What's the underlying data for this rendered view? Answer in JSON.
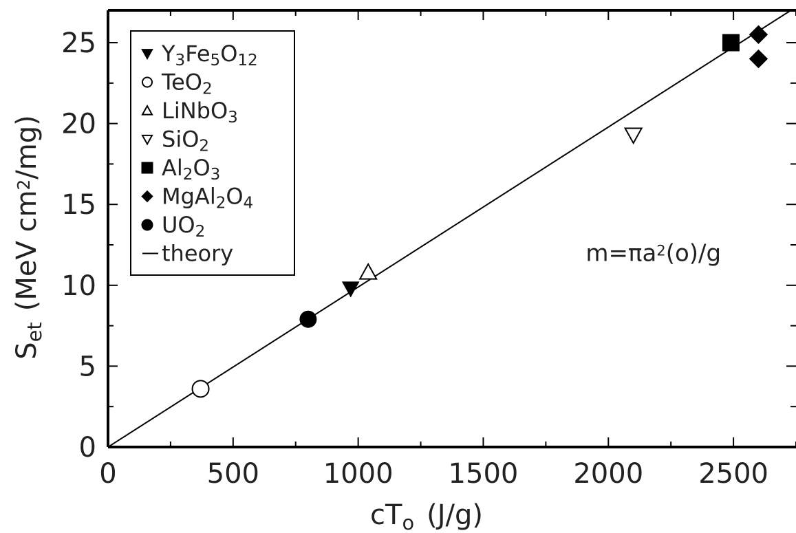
{
  "chart_data": {
    "type": "scatter",
    "xlabel": {
      "base": "cT",
      "sub": "o",
      "units": "(J/g)"
    },
    "ylabel": {
      "base": "S",
      "sub": "et",
      "units_pre": "(MeV cm",
      "units_sup": "2",
      "units_post": "/mg)"
    },
    "xlim": [
      0,
      2750
    ],
    "ylim": [
      0,
      27
    ],
    "x_ticks": [
      0,
      500,
      1000,
      1500,
      2000,
      2500
    ],
    "y_ticks": [
      0,
      5,
      10,
      15,
      20,
      25
    ],
    "x_tick_labels": [
      "0",
      "500",
      "1000",
      "1500",
      "2000",
      "2500"
    ],
    "y_tick_labels": [
      "0",
      "5",
      "10",
      "15",
      "20",
      "25"
    ],
    "grid": false,
    "legend_position": "top-left",
    "annotation": {
      "text_pre": "m=πa",
      "text_sup": "2",
      "text_post": "(o)/g",
      "x": 2180,
      "y": 11.5
    },
    "theory_line": {
      "name": "theory",
      "x": [
        0,
        2750
      ],
      "y": [
        0,
        27.2
      ]
    },
    "series": [
      {
        "name": "Y3Fe5O12",
        "label_parts": [
          [
            "Y",
            ""
          ],
          [
            "3",
            "sub"
          ],
          [
            "Fe",
            ""
          ],
          [
            "5",
            "sub"
          ],
          [
            "O",
            ""
          ],
          [
            "12",
            "sub"
          ]
        ],
        "marker": "triangle-down-filled",
        "points": [
          [
            970,
            9.8
          ]
        ]
      },
      {
        "name": "TeO2",
        "label_parts": [
          [
            "TeO",
            ""
          ],
          [
            "2",
            "sub"
          ]
        ],
        "marker": "circle-open",
        "points": [
          [
            370,
            3.6
          ]
        ]
      },
      {
        "name": "LiNbO3",
        "label_parts": [
          [
            "LiNbO",
            ""
          ],
          [
            "3",
            "sub"
          ]
        ],
        "marker": "triangle-up-open",
        "points": [
          [
            1040,
            10.8
          ]
        ]
      },
      {
        "name": "SiO2",
        "label_parts": [
          [
            "SiO",
            ""
          ],
          [
            "2",
            "sub"
          ]
        ],
        "marker": "triangle-down-open",
        "points": [
          [
            2100,
            19.3
          ]
        ]
      },
      {
        "name": "Al2O3",
        "label_parts": [
          [
            "Al",
            ""
          ],
          [
            "2",
            "sub"
          ],
          [
            "O",
            ""
          ],
          [
            "3",
            "sub"
          ]
        ],
        "marker": "square-filled",
        "points": [
          [
            2490,
            25.0
          ]
        ]
      },
      {
        "name": "MgAl2O4",
        "label_parts": [
          [
            "MgAl",
            ""
          ],
          [
            "2",
            "sub"
          ],
          [
            "O",
            ""
          ],
          [
            "4",
            "sub"
          ]
        ],
        "marker": "diamond-filled",
        "points": [
          [
            2600,
            25.5
          ],
          [
            2600,
            24.0
          ]
        ]
      },
      {
        "name": "UO2",
        "label_parts": [
          [
            "UO",
            ""
          ],
          [
            "2",
            "sub"
          ]
        ],
        "marker": "circle-filled",
        "points": [
          [
            800,
            7.9
          ]
        ]
      }
    ],
    "legend_entries": [
      {
        "series": "Y3Fe5O12"
      },
      {
        "series": "TeO2"
      },
      {
        "series": "LiNbO3"
      },
      {
        "series": "SiO2"
      },
      {
        "series": "Al2O3"
      },
      {
        "series": "MgAl2O4"
      },
      {
        "series": "UO2"
      },
      {
        "series": "theory",
        "label_parts": [
          [
            "theory",
            ""
          ]
        ],
        "marker": "line"
      }
    ]
  }
}
